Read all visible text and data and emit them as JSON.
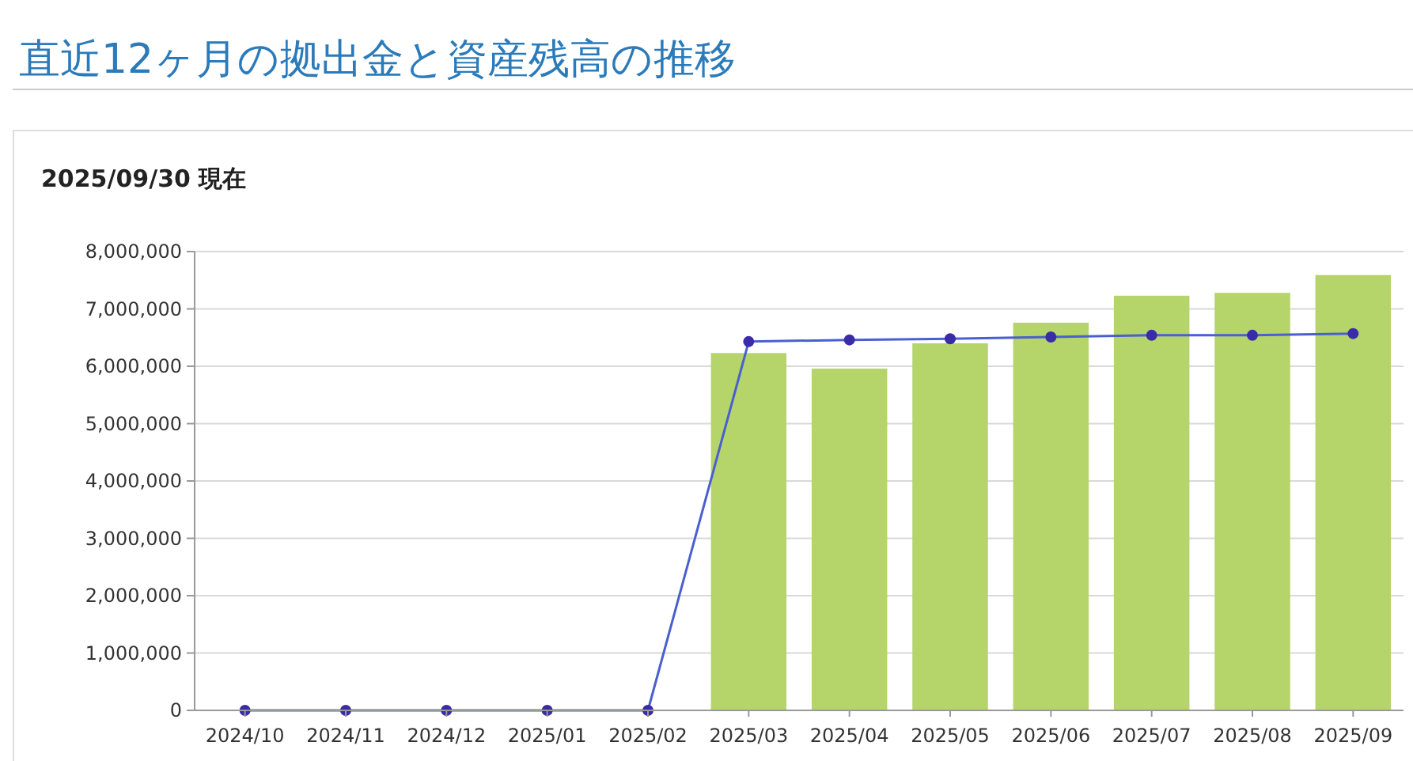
{
  "chart_data": {
    "type": "bar",
    "title": "直近12ヶ月の拠出金と資産残高の推移",
    "subtitle": "2025/09/30 現在",
    "categories": [
      "2024/10",
      "2024/11",
      "2024/12",
      "2025/01",
      "2025/02",
      "2025/03",
      "2025/04",
      "2025/05",
      "2025/06",
      "2025/07",
      "2025/08",
      "2025/09"
    ],
    "series": [
      {
        "color": "#b5d46a",
        "values": [
          0,
          0,
          0,
          0,
          0,
          6230000,
          5960000,
          6400000,
          6760000,
          7230000,
          7280000,
          7590000
        ]
      },
      {
        "type": "line",
        "color": "#4a5fd0",
        "marker": "circle",
        "values": [
          0,
          0,
          0,
          0,
          0,
          6430000,
          6460000,
          6480000,
          6510000,
          6540000,
          6540000,
          6570000
        ]
      }
    ],
    "ylim": [
      0,
      8000000
    ],
    "yticks": [
      {
        "value": 0,
        "label": "0"
      },
      {
        "value": 1000000,
        "label": "1,000,000"
      },
      {
        "value": 2000000,
        "label": "2,000,000"
      },
      {
        "value": 3000000,
        "label": "3,000,000"
      },
      {
        "value": 4000000,
        "label": "4,000,000"
      },
      {
        "value": 5000000,
        "label": "5,000,000"
      },
      {
        "value": 6000000,
        "label": "6,000,000"
      },
      {
        "value": 7000000,
        "label": "7,000,000"
      },
      {
        "value": 8000000,
        "label": "8,000,000"
      }
    ],
    "grid": "y"
  }
}
